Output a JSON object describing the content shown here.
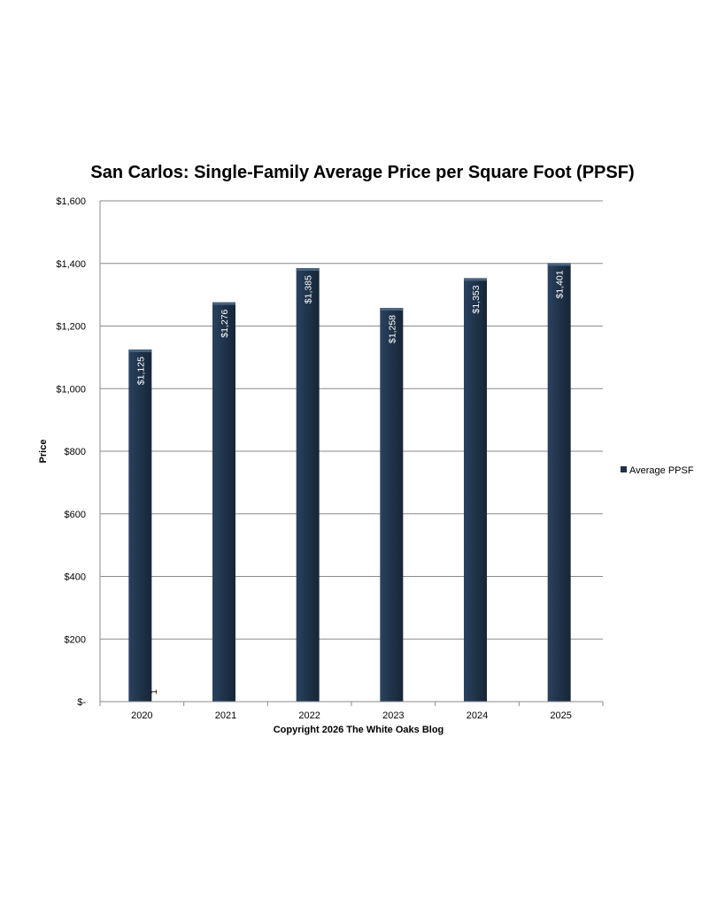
{
  "chart_data": {
    "type": "bar",
    "title": "San Carlos: Single-Family Average Price per Square Foot (PPSF)",
    "xlabel": "Copyright 2026 The White  Oaks Blog",
    "ylabel": "Price",
    "categories": [
      "2020",
      "2021",
      "2022",
      "2023",
      "2024",
      "2025"
    ],
    "series": [
      {
        "name": "Average PPSF",
        "values": [
          1125,
          1276,
          1385,
          1258,
          1353,
          1401
        ],
        "labels": [
          "$1,125",
          "$1,276",
          "$1,385",
          "$1,258",
          "$1,353",
          "$1,401"
        ],
        "color": "#1f3349"
      }
    ],
    "ylim": [
      0,
      1600
    ],
    "yticks": [
      0,
      200,
      400,
      600,
      800,
      1000,
      1200,
      1400,
      1600
    ],
    "ytick_labels": [
      "$-",
      "$200",
      "$400",
      "$600",
      "$800",
      "$1,000",
      "$1,200",
      "$1,400",
      "$1,600"
    ],
    "grid": true,
    "legend_position": "right",
    "annotation": "1"
  }
}
